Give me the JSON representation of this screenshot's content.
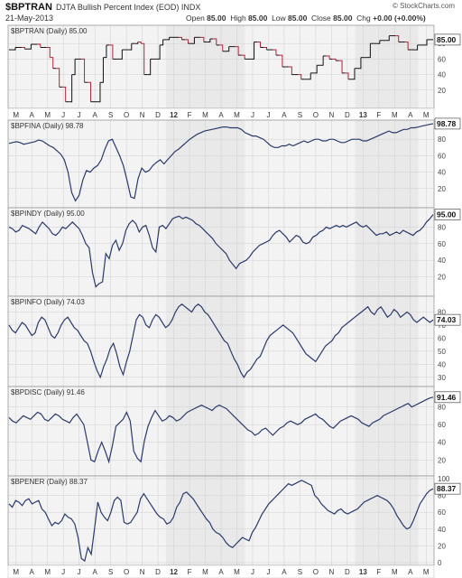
{
  "header": {
    "symbol": "$BPTRAN",
    "description": "DJTA Bullish Percent Index (EOD)",
    "exchange": "INDX",
    "date": "21-May-2013",
    "brand": "© StockCharts.com",
    "open_label": "Open",
    "open": "85.00",
    "high_label": "High",
    "high": "85.00",
    "low_label": "Low",
    "low": "85.00",
    "close_label": "Close",
    "close": "85.00",
    "chg_label": "Chg",
    "chg": "+0.00 (+0.00%)"
  },
  "colors": {
    "up": "#111111",
    "down": "#b0243a",
    "line": "#2c3a6b",
    "shade": "#e9e9e9",
    "panel_bg": "#f3f3f3",
    "grid": "#cfcfcf",
    "label_box": "#ffffff"
  },
  "x_axis": {
    "labels": [
      "M",
      "A",
      "M",
      "J",
      "J",
      "A",
      "S",
      "O",
      "N",
      "D",
      "12",
      "F",
      "M",
      "A",
      "M",
      "J",
      "J",
      "A",
      "S",
      "O",
      "N",
      "D",
      "13",
      "F",
      "M",
      "A",
      "M"
    ],
    "shaded_month_index_ranges": [
      [
        10,
        15
      ],
      [
        22,
        26
      ]
    ]
  },
  "chart_data": [
    {
      "type": "line",
      "style": "point-and-figure-steps",
      "title": "$BPTRAN (Daily) 85.00",
      "last_value_label": "85.00",
      "y_ticks": [
        20,
        40,
        60,
        80
      ],
      "ylim": [
        0,
        100
      ],
      "series": [
        {
          "values": [
            72,
            72,
            75,
            75,
            75,
            73,
            73,
            79,
            79,
            79,
            75,
            75,
            75,
            62,
            48,
            48,
            24,
            24,
            5,
            5,
            40,
            60,
            60,
            60,
            30,
            30,
            5,
            5,
            5,
            30,
            62,
            78,
            78,
            60,
            60,
            60,
            72,
            72,
            72,
            80,
            80,
            82,
            80,
            40,
            40,
            60,
            60,
            60,
            78,
            85,
            85,
            88,
            88,
            88,
            88,
            85,
            85,
            80,
            80,
            88,
            88,
            88,
            82,
            82,
            86,
            86,
            78,
            78,
            70,
            70,
            76,
            76,
            76,
            65,
            65,
            60,
            60,
            60,
            82,
            82,
            75,
            75,
            72,
            72,
            72,
            65,
            65,
            50,
            50,
            50,
            40,
            40,
            40,
            34,
            34,
            34,
            42,
            42,
            52,
            52,
            64,
            64,
            60,
            60,
            58,
            58,
            42,
            42,
            34,
            34,
            48,
            48,
            62,
            62,
            62,
            80,
            80,
            80,
            84,
            84,
            84,
            90,
            90,
            90,
            82,
            82,
            82,
            72,
            72,
            72,
            78,
            78,
            78,
            85,
            85,
            85
          ]
        }
      ]
    },
    {
      "type": "line",
      "title": "$BPFINA (Daily) 98.78",
      "last_value_label": "98.78",
      "y_ticks": [
        20,
        40,
        60,
        80
      ],
      "ylim": [
        0,
        100
      ],
      "series": [
        {
          "values": [
            75,
            76,
            77,
            76,
            74,
            75,
            76,
            77,
            79,
            78,
            75,
            72,
            70,
            66,
            62,
            55,
            40,
            15,
            5,
            12,
            30,
            42,
            40,
            45,
            48,
            55,
            68,
            78,
            80,
            70,
            60,
            48,
            30,
            10,
            8,
            32,
            45,
            40,
            42,
            48,
            52,
            55,
            50,
            55,
            60,
            65,
            68,
            72,
            76,
            80,
            83,
            86,
            88,
            90,
            91,
            92,
            93,
            94,
            95,
            95,
            94,
            94,
            94,
            92,
            88,
            86,
            84,
            84,
            82,
            80,
            76,
            72,
            70,
            70,
            72,
            72,
            74,
            72,
            74,
            76,
            78,
            76,
            78,
            80,
            80,
            78,
            78,
            80,
            80,
            78,
            76,
            76,
            78,
            80,
            80,
            80,
            78,
            78,
            80,
            82,
            84,
            86,
            88,
            90,
            88,
            88,
            90,
            92,
            92,
            94,
            94,
            95,
            96,
            97,
            98,
            99
          ]
        }
      ]
    },
    {
      "type": "line",
      "title": "$BPINDY (Daily) 95.00",
      "last_value_label": "95.00",
      "y_ticks": [
        20,
        40,
        60,
        80
      ],
      "ylim": [
        0,
        100
      ],
      "series": [
        {
          "values": [
            80,
            78,
            74,
            76,
            82,
            80,
            78,
            75,
            72,
            80,
            86,
            82,
            78,
            72,
            70,
            74,
            80,
            78,
            82,
            86,
            82,
            78,
            70,
            60,
            55,
            25,
            8,
            12,
            14,
            48,
            42,
            58,
            64,
            52,
            60,
            76,
            84,
            88,
            84,
            74,
            80,
            82,
            70,
            55,
            50,
            80,
            82,
            78,
            84,
            90,
            92,
            93,
            90,
            92,
            90,
            88,
            84,
            82,
            78,
            74,
            70,
            66,
            60,
            56,
            52,
            48,
            40,
            35,
            30,
            36,
            38,
            40,
            44,
            50,
            54,
            58,
            60,
            62,
            64,
            70,
            74,
            76,
            72,
            68,
            62,
            66,
            70,
            68,
            62,
            60,
            62,
            68,
            70,
            74,
            76,
            80,
            78,
            80,
            82,
            80,
            82,
            80,
            82,
            84,
            86,
            82,
            80,
            82,
            78,
            74,
            70,
            72,
            72,
            74,
            70,
            72,
            74,
            72,
            76,
            74,
            72,
            70,
            74,
            76,
            80,
            86,
            90,
            95
          ]
        }
      ]
    },
    {
      "type": "line",
      "title": "$BPINFO (Daily) 74.03",
      "last_value_label": "74.03",
      "y_ticks": [
        30,
        40,
        50,
        60,
        70,
        80
      ],
      "ylim": [
        25,
        90
      ],
      "series": [
        {
          "values": [
            70,
            66,
            64,
            68,
            72,
            70,
            66,
            62,
            64,
            72,
            76,
            74,
            68,
            62,
            60,
            64,
            70,
            74,
            76,
            72,
            68,
            66,
            62,
            58,
            56,
            50,
            42,
            35,
            30,
            38,
            44,
            52,
            56,
            48,
            38,
            32,
            42,
            50,
            62,
            74,
            78,
            76,
            70,
            68,
            74,
            78,
            76,
            72,
            68,
            70,
            74,
            80,
            84,
            86,
            84,
            82,
            80,
            84,
            86,
            84,
            80,
            78,
            74,
            70,
            66,
            62,
            58,
            56,
            50,
            44,
            40,
            34,
            30,
            34,
            36,
            40,
            44,
            46,
            52,
            58,
            62,
            64,
            66,
            68,
            70,
            68,
            66,
            64,
            60,
            56,
            52,
            48,
            46,
            44,
            42,
            46,
            50,
            54,
            56,
            58,
            62,
            64,
            68,
            70,
            72,
            74,
            76,
            78,
            80,
            82,
            84,
            80,
            78,
            82,
            84,
            80,
            76,
            78,
            82,
            80,
            76,
            78,
            80,
            78,
            74,
            72,
            74,
            76,
            74,
            72,
            74
          ]
        }
      ]
    },
    {
      "type": "line",
      "title": "$BPDISC (Daily) 91.46",
      "last_value_label": "91.46",
      "y_ticks": [
        20,
        40,
        60,
        80
      ],
      "ylim": [
        5,
        100
      ],
      "series": [
        {
          "values": [
            68,
            64,
            62,
            66,
            70,
            68,
            66,
            70,
            74,
            72,
            66,
            64,
            68,
            72,
            70,
            66,
            64,
            62,
            68,
            72,
            66,
            60,
            40,
            20,
            18,
            30,
            40,
            30,
            18,
            36,
            58,
            62,
            66,
            74,
            64,
            30,
            22,
            18,
            42,
            58,
            68,
            76,
            70,
            64,
            66,
            70,
            68,
            64,
            66,
            70,
            74,
            76,
            78,
            80,
            82,
            80,
            78,
            76,
            80,
            82,
            80,
            78,
            74,
            70,
            66,
            62,
            58,
            54,
            52,
            48,
            50,
            54,
            56,
            52,
            48,
            52,
            56,
            58,
            62,
            64,
            62,
            60,
            62,
            66,
            68,
            70,
            72,
            68,
            66,
            62,
            58,
            56,
            60,
            64,
            66,
            68,
            70,
            68,
            66,
            62,
            60,
            58,
            62,
            64,
            66,
            70,
            72,
            74,
            76,
            78,
            80,
            82,
            84,
            80,
            82,
            84,
            86,
            88,
            90,
            91
          ]
        }
      ]
    },
    {
      "type": "line",
      "title": "$BPENER (Daily) 88.37",
      "last_value_label": "88.37",
      "y_ticks": [
        0,
        20,
        40,
        60,
        80,
        100
      ],
      "ylim": [
        0,
        100
      ],
      "series": [
        {
          "values": [
            70,
            66,
            74,
            72,
            68,
            74,
            76,
            70,
            72,
            74,
            64,
            60,
            52,
            44,
            48,
            46,
            50,
            58,
            54,
            52,
            46,
            30,
            5,
            2,
            18,
            10,
            40,
            72,
            60,
            54,
            50,
            60,
            74,
            78,
            74,
            48,
            46,
            48,
            54,
            60,
            76,
            82,
            76,
            70,
            64,
            58,
            54,
            52,
            46,
            48,
            54,
            66,
            72,
            82,
            84,
            80,
            76,
            70,
            64,
            58,
            52,
            48,
            40,
            36,
            34,
            30,
            24,
            20,
            18,
            22,
            26,
            30,
            28,
            26,
            36,
            42,
            50,
            58,
            64,
            70,
            74,
            78,
            82,
            86,
            90,
            94,
            92,
            94,
            96,
            98,
            96,
            94,
            92,
            80,
            76,
            70,
            66,
            62,
            60,
            58,
            62,
            64,
            60,
            58,
            60,
            62,
            64,
            68,
            72,
            74,
            76,
            78,
            80,
            78,
            76,
            74,
            70,
            64,
            56,
            50,
            44,
            40,
            42,
            50,
            60,
            70,
            76,
            82,
            86,
            88
          ]
        }
      ]
    }
  ]
}
